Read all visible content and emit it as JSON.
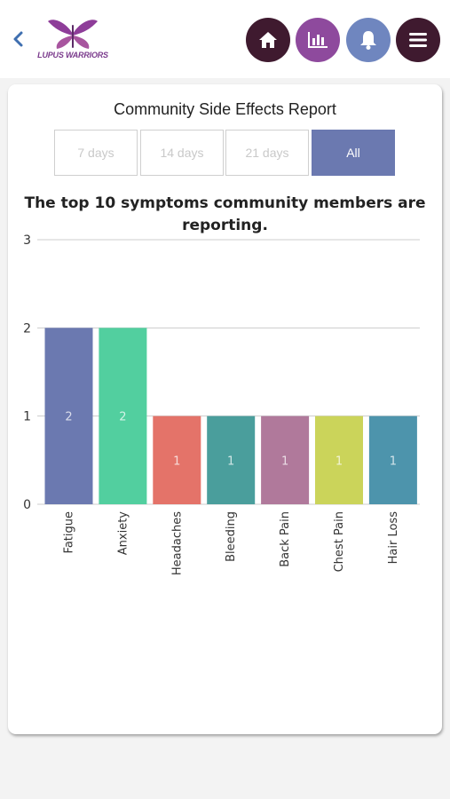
{
  "header": {
    "logo_text": "LUPUS WARRIORS",
    "icons": [
      "back-chevron-icon",
      "home-icon",
      "bar-chart-icon",
      "bell-icon",
      "menu-icon"
    ]
  },
  "report": {
    "title": "Community Side Effects Report",
    "tabs": [
      {
        "label": "7 days",
        "active": false
      },
      {
        "label": "14 days",
        "active": false
      },
      {
        "label": "21 days",
        "active": false
      },
      {
        "label": "All",
        "active": true
      }
    ],
    "chart_heading": "The top 10 symptoms community members are reporting."
  },
  "colors": {
    "active_tab": "#6b79b0",
    "header_dark": "#3f1a2f",
    "header_purple": "#8e4a9d",
    "header_blue": "#6f86bf"
  },
  "chart_data": {
    "type": "bar",
    "title": "The top 10 symptoms community members are reporting.",
    "categories": [
      "Fatigue",
      "Anxiety",
      "Headaches",
      "Bleeding",
      "Back Pain",
      "Chest Pain",
      "Hair Loss"
    ],
    "values": [
      2,
      2,
      1,
      1,
      1,
      1,
      1
    ],
    "colors": [
      "#6b79b0",
      "#52cf9f",
      "#e47369",
      "#4a9e9c",
      "#b0799b",
      "#cbd45a",
      "#4d94ac"
    ],
    "ylim": [
      0,
      3
    ],
    "yticks": [
      0,
      1,
      2,
      3
    ],
    "data_labels": true,
    "grid": true,
    "xlabel": "",
    "ylabel": ""
  }
}
